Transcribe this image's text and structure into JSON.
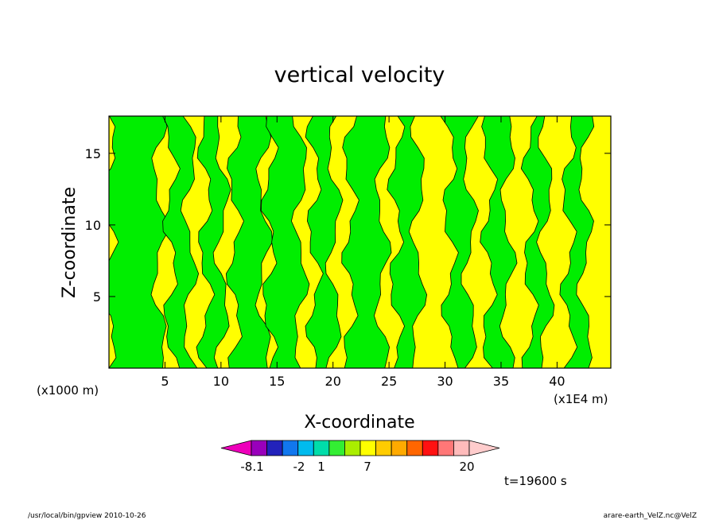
{
  "chart_data": {
    "type": "heatmap",
    "title": "vertical velocity",
    "xlabel": "X-coordinate",
    "ylabel": "Z-coordinate",
    "x_unit_left": "(x1000 m)",
    "x_unit_right": "(x1E4 m)",
    "xlim": [
      0,
      44.8
    ],
    "ylim": [
      0,
      17.6
    ],
    "xticks": [
      5,
      10,
      15,
      20,
      25,
      30,
      35,
      40
    ],
    "yticks": [
      5,
      10,
      15
    ],
    "xtick_labels": [
      "5",
      "10",
      "15",
      "20",
      "25",
      "30",
      "35",
      "40"
    ],
    "ytick_labels": [
      "5",
      "10",
      "15"
    ],
    "colors": {
      "positive": "#ffff00",
      "negative": "#00ee00",
      "contour": "#000000"
    },
    "green_bands": [
      [
        0,
        4.5
      ],
      [
        5.5,
        7.2
      ],
      [
        8.6,
        10.1
      ],
      [
        11.2,
        13.8
      ],
      [
        14.3,
        17.1
      ],
      [
        18.3,
        20.1
      ],
      [
        21.5,
        24.4
      ],
      [
        25.6,
        27.6
      ],
      [
        30.4,
        32.2
      ],
      [
        33.9,
        35.6
      ],
      [
        37.6,
        39.0
      ],
      [
        41.0,
        42.5
      ]
    ],
    "colorbar": {
      "labels": [
        "-8.1",
        "-2",
        "1",
        "7",
        "20"
      ],
      "colors": [
        "#ee00bb",
        "#9900bb",
        "#2222bb",
        "#1177ee",
        "#00bbee",
        "#00ddaa",
        "#33ee33",
        "#aaee00",
        "#ffff00",
        "#ffcc00",
        "#ffaa00",
        "#ff6600",
        "#ff1111",
        "#ff7777",
        "#ffbbbb",
        "#ffcccc"
      ]
    },
    "time_label": "t=19600 s"
  },
  "footer": {
    "left": "/usr/local/bin/gpview  2010-10-26",
    "right": "arare-earth_VelZ.nc@VelZ"
  }
}
